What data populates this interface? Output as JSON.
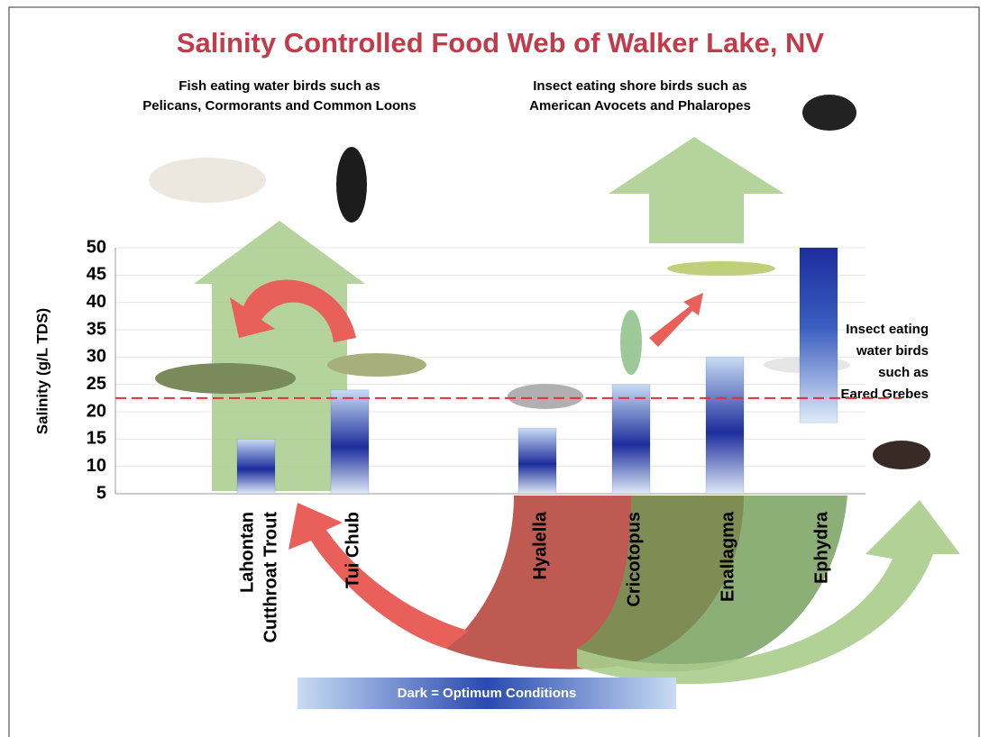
{
  "chart_data": {
    "type": "bar",
    "title": "Salinity Controlled Food Web of Walker Lake, NV",
    "annotations": [
      [
        "Fish eating water birds such as",
        "Pelicans, Cormorants and Common Loons"
      ],
      [
        "Insect eating shore birds such as",
        "American Avocets and Phalaropes"
      ],
      [
        "Insect eating",
        "water birds",
        "such as",
        "Eared Grebes"
      ]
    ],
    "y_label": "Salinity (g/L TDS)",
    "legend": "Dark = Optimum Conditions",
    "categories": [
      null,
      [
        "Lahontan",
        "Cutthroat Trout"
      ],
      [
        "Tui Chub"
      ],
      null,
      [
        "Hyalella"
      ],
      [
        "Cricotopus"
      ],
      [
        "Enallagma"
      ],
      [
        "Ephydra"
      ]
    ],
    "base": [
      null,
      5,
      5,
      null,
      5,
      5,
      5,
      18
    ],
    "values": [
      null,
      15,
      24,
      null,
      17,
      25,
      30,
      50
    ],
    "threshold": 22.5,
    "color": "#1c2d9c",
    "ylim": [
      5,
      50
    ],
    "yticks": [
      5,
      10,
      15,
      20,
      25,
      30,
      35,
      40,
      45,
      50
    ],
    "grid": true
  }
}
